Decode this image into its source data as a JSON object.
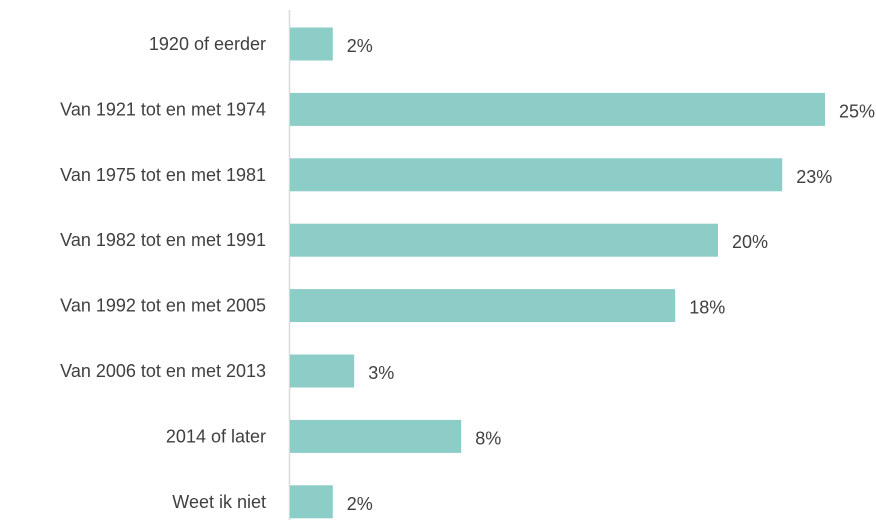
{
  "chart_data": {
    "type": "bar",
    "orientation": "horizontal",
    "categories": [
      "1920 of eerder",
      "Van 1921 tot en met 1974",
      "Van 1975 tot en met 1981",
      "Van 1982 tot en met 1991",
      "Van 1992 tot en met 2005",
      "Van 2006 tot en met 2013",
      "2014 of later",
      "Weet ik niet"
    ],
    "values": [
      2,
      25,
      23,
      20,
      18,
      3,
      8,
      2
    ],
    "value_labels": [
      "2%",
      "25%",
      "23%",
      "20%",
      "18%",
      "3%",
      "8%",
      "2%"
    ],
    "unit": "%",
    "title": "",
    "xlabel": "",
    "ylabel": "",
    "xlim": [
      0,
      25
    ],
    "grid": false,
    "legend": "none",
    "bar_color": "#8ccdc8",
    "axis_color": "#d9d9d9",
    "text_color": "#404040"
  }
}
